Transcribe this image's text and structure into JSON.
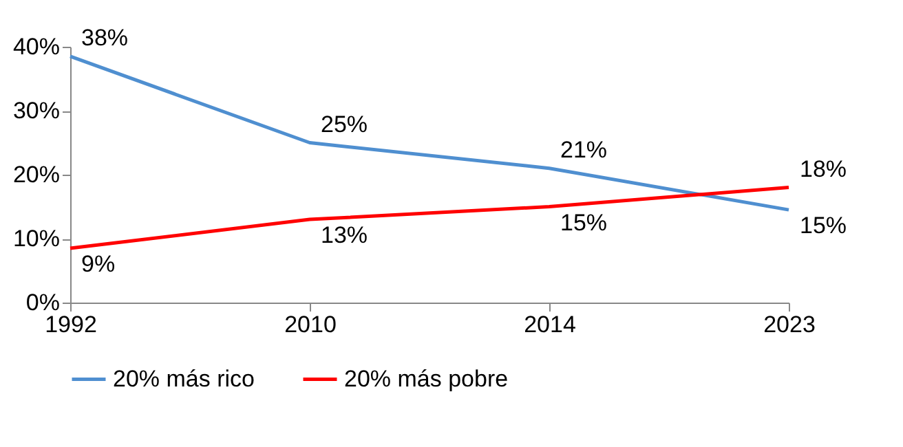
{
  "chart_data": {
    "type": "line",
    "categories": [
      "1992",
      "2010",
      "2014",
      "2023"
    ],
    "series": [
      {
        "name": "20% más rico",
        "color": "#4f8fd0",
        "values": [
          38.5,
          25,
          21,
          14.5
        ],
        "value_labels": [
          "38%",
          "25%",
          "21%",
          "15%"
        ]
      },
      {
        "name": "20% más pobre",
        "color": "#ff0000",
        "values": [
          8.5,
          13,
          15,
          18
        ],
        "value_labels": [
          "9%",
          "13%",
          "15%",
          "18%"
        ]
      }
    ],
    "ylim": [
      0,
      40
    ],
    "yticks": [
      {
        "value": 0,
        "label": "0%"
      },
      {
        "value": 10,
        "label": "10%"
      },
      {
        "value": 20,
        "label": "20%"
      },
      {
        "value": 30,
        "label": "30%"
      },
      {
        "value": 40,
        "label": "40%"
      }
    ],
    "grid": false,
    "legend": "bottom",
    "marker": "none",
    "line_style": "solid"
  }
}
